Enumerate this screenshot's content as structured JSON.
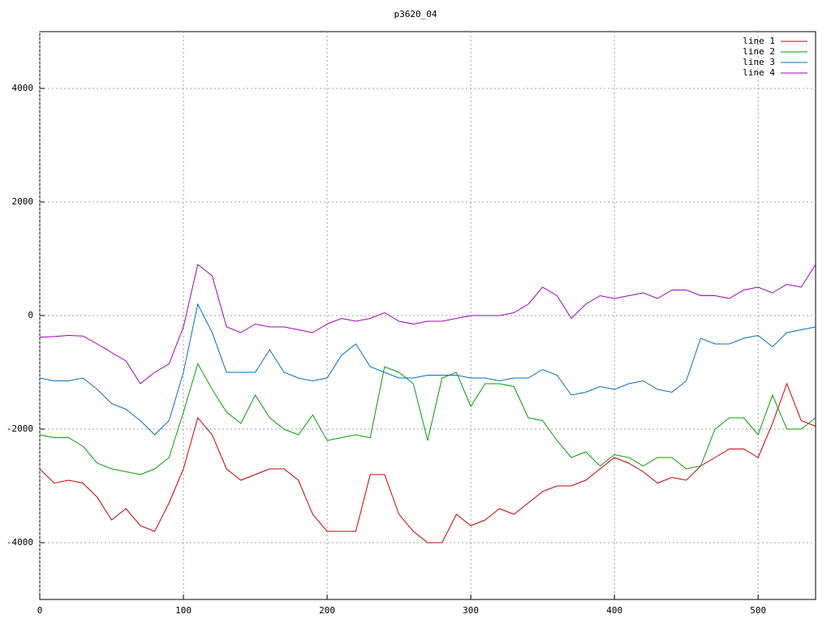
{
  "chart_data": {
    "type": "line",
    "title": "p3620_04",
    "x": [
      0,
      10,
      20,
      30,
      40,
      50,
      60,
      70,
      80,
      90,
      100,
      110,
      120,
      130,
      140,
      150,
      160,
      170,
      180,
      190,
      200,
      210,
      220,
      230,
      240,
      250,
      260,
      270,
      280,
      290,
      300,
      310,
      320,
      330,
      340,
      350,
      360,
      370,
      380,
      390,
      400,
      410,
      420,
      430,
      440,
      450,
      460,
      470,
      480,
      490,
      500,
      510,
      520,
      530,
      540
    ],
    "series": [
      {
        "name": "line 1",
        "color": "#cc0000",
        "values": [
          -2700,
          -2950,
          -2900,
          -2950,
          -3200,
          -3600,
          -3400,
          -3700,
          -3800,
          -3300,
          -2700,
          -1800,
          -2100,
          -2700,
          -2900,
          -2800,
          -2700,
          -2700,
          -2900,
          -3500,
          -3800,
          -3800,
          -3800,
          -2800,
          -2800,
          -3500,
          -3800,
          -4000,
          -4000,
          -3500,
          -3700,
          -3600,
          -3400,
          -3500,
          -3300,
          -3100,
          -3000,
          -3000,
          -2900,
          -2700,
          -2500,
          -2600,
          -2750,
          -2950,
          -2850,
          -2900,
          -2650,
          -2500,
          -2350,
          -2350,
          -2500,
          -1900,
          -1200,
          -1850,
          -1950
        ]
      },
      {
        "name": "line 2",
        "color": "#00a000",
        "values": [
          -2100,
          -2150,
          -2150,
          -2300,
          -2600,
          -2700,
          -2750,
          -2800,
          -2700,
          -2500,
          -1700,
          -850,
          -1300,
          -1700,
          -1900,
          -1400,
          -1800,
          -2000,
          -2100,
          -1750,
          -2200,
          -2150,
          -2100,
          -2150,
          -900,
          -1000,
          -1200,
          -2200,
          -1100,
          -1000,
          -1600,
          -1200,
          -1200,
          -1250,
          -1800,
          -1850,
          -2200,
          -2500,
          -2400,
          -2650,
          -2450,
          -2500,
          -2650,
          -2500,
          -2500,
          -2700,
          -2650,
          -2000,
          -1800,
          -1800,
          -2100,
          -1400,
          -2000,
          -2000,
          -1800
        ]
      },
      {
        "name": "line 3",
        "color": "#0070c0",
        "values": [
          -1100,
          -1150,
          -1150,
          -1100,
          -1300,
          -1550,
          -1650,
          -1850,
          -2100,
          -1850,
          -1000,
          200,
          -300,
          -1000,
          -1000,
          -1000,
          -600,
          -1000,
          -1100,
          -1150,
          -1100,
          -700,
          -500,
          -900,
          -1000,
          -1100,
          -1100,
          -1050,
          -1050,
          -1050,
          -1100,
          -1100,
          -1150,
          -1100,
          -1100,
          -950,
          -1050,
          -1400,
          -1350,
          -1250,
          -1300,
          -1200,
          -1150,
          -1300,
          -1350,
          -1150,
          -400,
          -500,
          -500,
          -400,
          -350,
          -550,
          -300,
          -250,
          -200
        ]
      },
      {
        "name": "line 4",
        "color": "#a000c0",
        "values": [
          -380,
          -370,
          -350,
          -360,
          -500,
          -650,
          -800,
          -1200,
          -1000,
          -850,
          -200,
          900,
          700,
          -200,
          -300,
          -150,
          -200,
          -200,
          -250,
          -300,
          -150,
          -50,
          -100,
          -50,
          50,
          -100,
          -150,
          -100,
          -100,
          -50,
          0,
          0,
          0,
          50,
          200,
          500,
          350,
          -50,
          200,
          350,
          300,
          350,
          400,
          300,
          450,
          450,
          350,
          350,
          300,
          450,
          500,
          400,
          550,
          500,
          900
        ]
      }
    ],
    "xlim": [
      0,
      540
    ],
    "xticks": [
      0,
      100,
      200,
      300,
      400,
      500
    ],
    "ylim": [
      -5000,
      5000
    ],
    "yticks": [
      -4000,
      -2000,
      0,
      2000,
      4000
    ],
    "grid": true
  }
}
